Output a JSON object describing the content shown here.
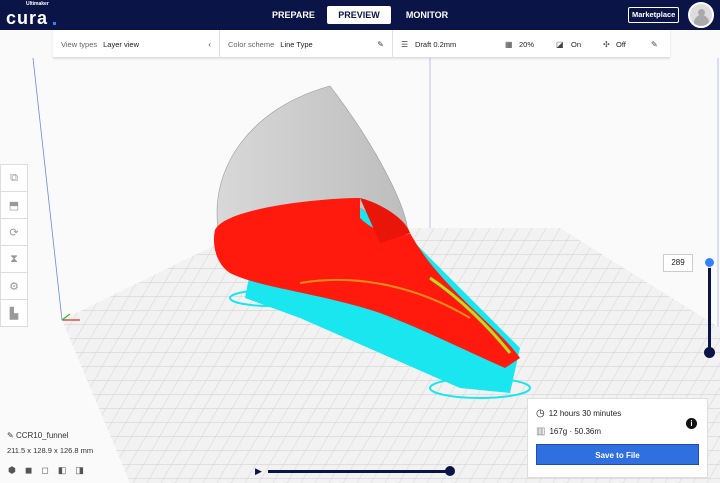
{
  "header": {
    "logo_small": "Ultimaker",
    "logo": "cura",
    "tabs": [
      {
        "label": "PREPARE"
      },
      {
        "label": "PREVIEW",
        "active": true
      },
      {
        "label": "MONITOR"
      }
    ],
    "marketplace": "Marketplace"
  },
  "toolbar": {
    "view_types_label": "View types",
    "view_types_value": "Layer view",
    "color_scheme_label": "Color scheme",
    "color_scheme_value": "Line Type",
    "profile": "Draft 0.2mm",
    "infill": "20%",
    "support": "On",
    "adhesion": "Off"
  },
  "left_tools": [
    "move-icon",
    "scale-icon",
    "rotate-icon",
    "mirror-icon",
    "per-model-settings-icon",
    "support-blocker-icon"
  ],
  "layer_slider": {
    "value": "289",
    "fraction": 1.0
  },
  "print_info": {
    "time": "12 hours 30 minutes",
    "material": "167g · 50.36m",
    "save_label": "Save to File"
  },
  "object": {
    "name": "CCR10_funnel",
    "dimensions": "211.5 x 128.9 x 126.8 mm"
  },
  "colors": {
    "header": "#0b1446",
    "accent": "#2f6fe0",
    "wall": "#ff1a0d",
    "support": "#19e6ee",
    "infill": "#ffd000"
  }
}
